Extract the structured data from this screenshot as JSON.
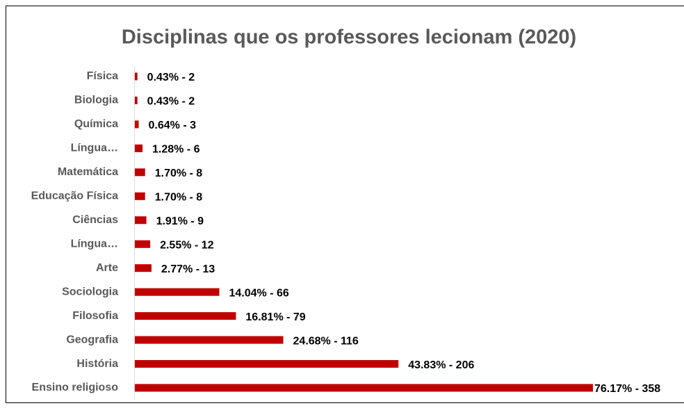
{
  "chart_data": {
    "type": "bar",
    "orientation": "horizontal",
    "title": "Disciplinas que os professores lecionam (2020)",
    "categories": [
      "Física",
      "Biologia",
      "Química",
      "Língua…",
      "Matemática",
      "Educação Física",
      "Ciências",
      "Língua…",
      "Arte",
      "Sociologia",
      "Filosofia",
      "Geografia",
      "História",
      "Ensino religioso"
    ],
    "values": [
      2,
      2,
      3,
      6,
      8,
      8,
      9,
      12,
      13,
      66,
      79,
      116,
      206,
      358
    ],
    "value_labels": [
      "0.43%  - 2",
      "0.43%  - 2",
      "0.64%  - 3",
      "1.28%  - 6",
      "1.70%  - 8",
      "1.70%  - 8",
      "1.91%  - 9",
      "2.55%  - 12",
      "2.77%  - 13",
      "14.04% - 66",
      "16.81%  - 79",
      "24.68%  - 116",
      "43.83%  - 206",
      "76.17%  - 358"
    ],
    "color": "#c00000"
  }
}
